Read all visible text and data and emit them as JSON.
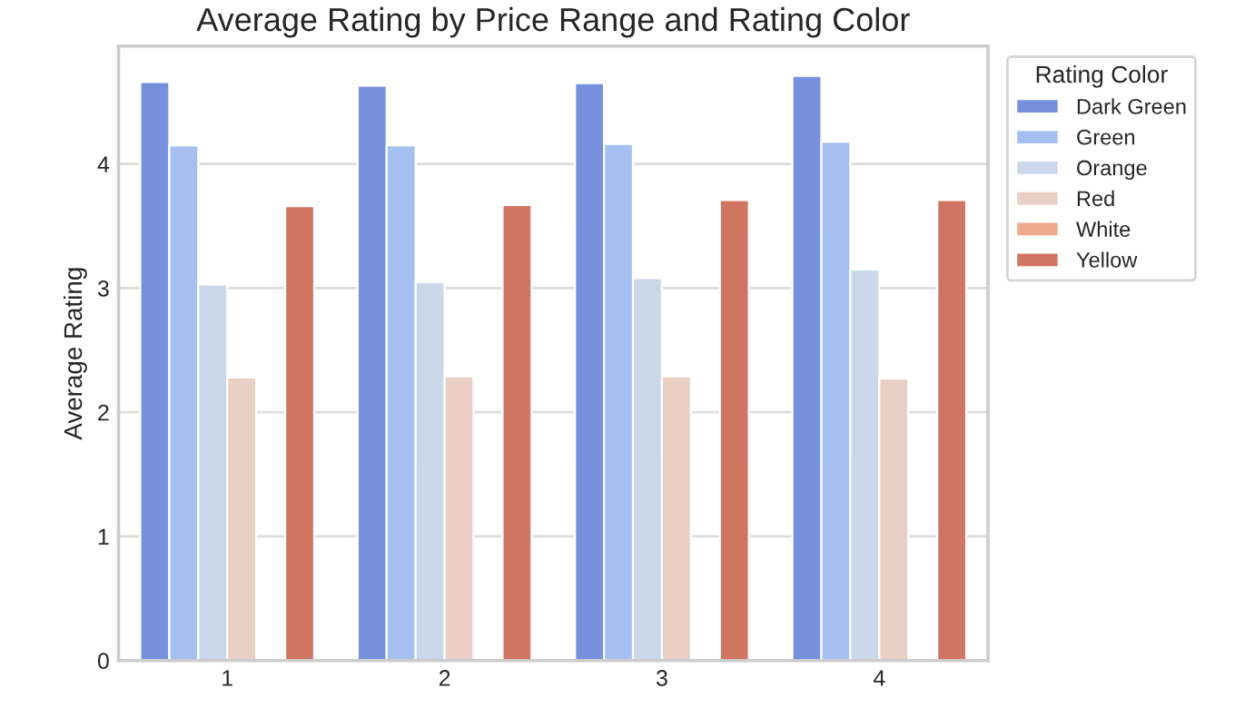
{
  "chart_data": {
    "type": "bar",
    "title": "Average Rating by Price Range and Rating Color",
    "ylabel": "Average Rating",
    "legend_title": "Rating Color",
    "categories": [
      "1",
      "2",
      "3",
      "4"
    ],
    "series": [
      {
        "name": "Dark Green",
        "color": "#7591de",
        "values": [
          4.66,
          4.63,
          4.65,
          4.71
        ]
      },
      {
        "name": "Green",
        "color": "#a5c0f0",
        "values": [
          4.15,
          4.15,
          4.16,
          4.18
        ]
      },
      {
        "name": "Orange",
        "color": "#cbd7ea",
        "values": [
          3.03,
          3.05,
          3.08,
          3.15
        ]
      },
      {
        "name": "Red",
        "color": "#e9cfc4",
        "values": [
          2.28,
          2.29,
          2.29,
          2.27
        ]
      },
      {
        "name": "White",
        "color": "#eeab8e",
        "values": [
          null,
          null,
          null,
          null
        ]
      },
      {
        "name": "Yellow",
        "color": "#d07561",
        "values": [
          3.66,
          3.67,
          3.71,
          3.71
        ]
      }
    ],
    "ylim": [
      0,
      4.95
    ],
    "yticks": [
      0,
      1,
      2,
      3,
      4
    ],
    "grid": "y",
    "legend": "right"
  }
}
